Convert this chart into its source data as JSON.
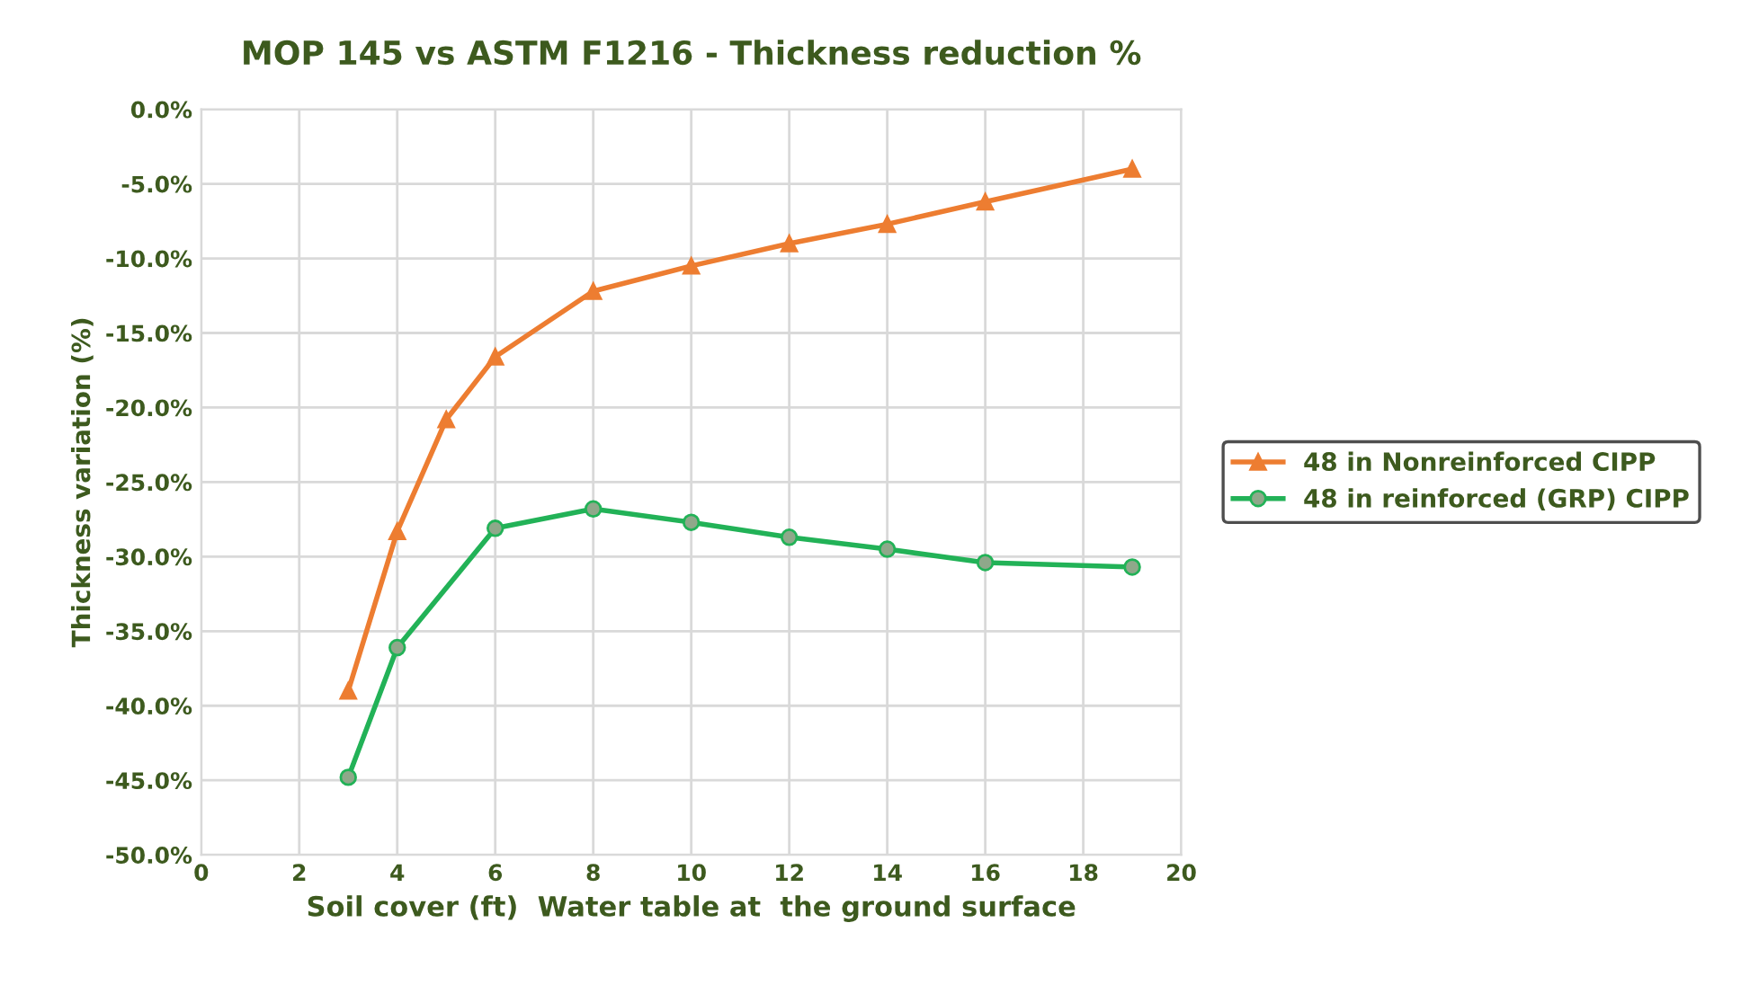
{
  "chart_data": {
    "type": "line",
    "title": "MOP 145 vs ASTM F1216 - Thickness reduction %",
    "xlabel": "Soil cover (ft)  Water table at  the ground surface",
    "ylabel": "Thickness variation (%)",
    "x": [
      3,
      4,
      5,
      6,
      8,
      10,
      12,
      14,
      16,
      19
    ],
    "series": [
      {
        "name": "48 in Nonreinforced CIPP",
        "color": "#ed7d31",
        "marker": "triangle",
        "values": [
          -39.0,
          -28.3,
          -20.8,
          -16.6,
          -12.2,
          -10.5,
          -9.0,
          -7.7,
          -6.2,
          -4.0
        ]
      },
      {
        "name": "48 in reinforced (GRP) CIPP",
        "color": "#22b257",
        "marker": "circle",
        "x": [
          3,
          4,
          6,
          8,
          10,
          12,
          14,
          16,
          19
        ],
        "values": [
          -44.8,
          -36.1,
          -28.1,
          -26.8,
          -27.7,
          -28.7,
          -29.5,
          -30.4,
          -30.7
        ]
      }
    ],
    "xlim": [
      0,
      20
    ],
    "xticks": [
      0,
      2,
      4,
      6,
      8,
      10,
      12,
      14,
      16,
      18,
      20
    ],
    "ylim": [
      -50,
      0
    ],
    "yticks": [
      {
        "value": 0,
        "label": "0.0%"
      },
      {
        "value": -5,
        "label": "-5.0%"
      },
      {
        "value": -10,
        "label": "-10.0%"
      },
      {
        "value": -15,
        "label": "-15.0%"
      },
      {
        "value": -20,
        "label": "-20.0%"
      },
      {
        "value": -25,
        "label": "-25.0%"
      },
      {
        "value": -30,
        "label": "-30.0%"
      },
      {
        "value": -35,
        "label": "-35.0%"
      },
      {
        "value": -40,
        "label": "-40.0%"
      },
      {
        "value": -45,
        "label": "-45.0%"
      },
      {
        "value": -50,
        "label": "-50.0%"
      }
    ],
    "grid": true,
    "legend": "right",
    "line_style": "solid"
  }
}
